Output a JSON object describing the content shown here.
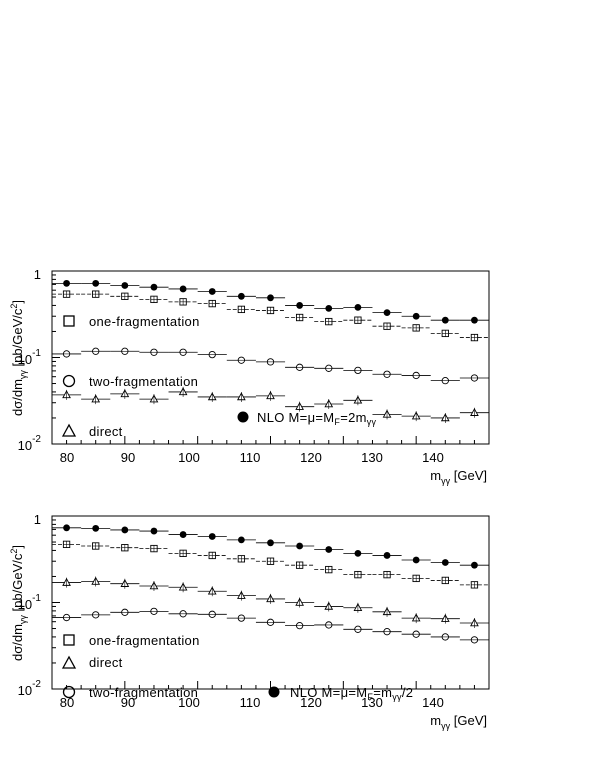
{
  "chart_data": [
    {
      "type": "scatter",
      "xlabel": "m_γγ [GeV]",
      "xlabel_main": "m",
      "xlabel_sub": "γγ",
      "xlabel_unit": " [GeV]",
      "ylabel": "dσ/dm_γγ [pb/GeV/c²]",
      "xlim": [
        80,
        140
      ],
      "ylim": [
        0.01,
        1
      ],
      "log_y": true,
      "x_ticks": [
        "80",
        "90",
        "100",
        "110",
        "120",
        "130",
        "140"
      ],
      "y_ticks": [
        {
          "base": "10",
          "exp": "-2"
        },
        {
          "base": "10",
          "exp": "-1"
        },
        {
          "base": "1",
          "exp": ""
        }
      ],
      "bin_width": 4,
      "x": [
        82,
        86,
        90,
        94,
        98,
        102,
        106,
        110,
        114,
        118,
        122,
        126,
        130,
        134,
        138
      ],
      "series": [
        {
          "name": "NLO M=μ=M_F=2m_γγ",
          "marker": "filled-circle",
          "values": [
            0.72,
            0.72,
            0.68,
            0.65,
            0.62,
            0.58,
            0.51,
            0.49,
            0.4,
            0.37,
            0.38,
            0.33,
            0.3,
            0.27,
            0.27
          ]
        },
        {
          "name": "one-fragmentation",
          "marker": "open-square",
          "values": [
            0.54,
            0.54,
            0.51,
            0.47,
            0.44,
            0.42,
            0.36,
            0.35,
            0.29,
            0.26,
            0.27,
            0.23,
            0.22,
            0.19,
            0.17
          ]
        },
        {
          "name": "two-fragmentation",
          "marker": "open-circle",
          "values": [
            0.11,
            0.118,
            0.118,
            0.115,
            0.115,
            0.108,
            0.093,
            0.089,
            0.077,
            0.075,
            0.071,
            0.064,
            0.062,
            0.054,
            0.058
          ]
        },
        {
          "name": "direct",
          "marker": "open-triangle",
          "values": [
            0.037,
            0.033,
            0.038,
            0.033,
            0.04,
            0.035,
            0.035,
            0.036,
            0.027,
            0.029,
            0.032,
            0.022,
            0.021,
            0.02,
            0.023
          ]
        }
      ],
      "legend": [
        {
          "label": "one-fragmentation",
          "marker": "open-square"
        },
        {
          "label": "two-fragmentation",
          "marker": "open-circle"
        },
        {
          "label": "direct",
          "marker": "open-triangle"
        },
        {
          "label": "NLO M=μ=M_F=2m_γγ",
          "text_before": "NLO M=μ=M",
          "sub1": "F",
          "text_mid": "=2m",
          "sub2": "γγ",
          "marker": "filled-circle"
        }
      ]
    },
    {
      "type": "scatter",
      "xlabel": "m_γγ [GeV]",
      "xlabel_main": "m",
      "xlabel_sub": "γγ",
      "xlabel_unit": " [GeV]",
      "ylabel": "dσ/dm_γγ [pb/GeV/c²]",
      "xlim": [
        80,
        140
      ],
      "ylim": [
        0.01,
        1
      ],
      "log_y": true,
      "x_ticks": [
        "80",
        "90",
        "100",
        "110",
        "120",
        "130",
        "140"
      ],
      "y_ticks": [
        {
          "base": "10",
          "exp": "-2"
        },
        {
          "base": "10",
          "exp": "-1"
        },
        {
          "base": "1",
          "exp": ""
        }
      ],
      "bin_width": 4,
      "x": [
        82,
        86,
        90,
        94,
        98,
        102,
        106,
        110,
        114,
        118,
        122,
        126,
        130,
        134,
        138
      ],
      "series": [
        {
          "name": "NLO M=μ=M_F=m_γγ/2",
          "marker": "filled-circle",
          "values": [
            0.73,
            0.72,
            0.69,
            0.67,
            0.61,
            0.58,
            0.53,
            0.49,
            0.45,
            0.41,
            0.37,
            0.35,
            0.31,
            0.29,
            0.27
          ]
        },
        {
          "name": "one-fragmentation",
          "marker": "open-square",
          "values": [
            0.47,
            0.45,
            0.43,
            0.42,
            0.37,
            0.35,
            0.32,
            0.3,
            0.27,
            0.24,
            0.21,
            0.21,
            0.19,
            0.18,
            0.16
          ]
        },
        {
          "name": "direct",
          "marker": "open-triangle",
          "values": [
            0.17,
            0.175,
            0.165,
            0.155,
            0.15,
            0.135,
            0.12,
            0.11,
            0.1,
            0.09,
            0.087,
            0.078,
            0.066,
            0.065,
            0.058
          ]
        },
        {
          "name": "two-fragmentation",
          "marker": "open-circle",
          "values": [
            0.067,
            0.072,
            0.077,
            0.079,
            0.074,
            0.073,
            0.066,
            0.059,
            0.054,
            0.055,
            0.049,
            0.046,
            0.043,
            0.04,
            0.037
          ]
        }
      ],
      "legend": [
        {
          "label": "one-fragmentation",
          "marker": "open-square"
        },
        {
          "label": "direct",
          "marker": "open-triangle"
        },
        {
          "label": "two-fragmentation",
          "marker": "open-circle"
        },
        {
          "label": "NLO M=μ=M_F=m_γγ/2",
          "text_before": "NLO M=μ=M",
          "sub1": "F",
          "text_mid": "=m",
          "sub2": "γγ",
          "text_after": "/2",
          "marker": "filled-circle"
        }
      ]
    }
  ]
}
